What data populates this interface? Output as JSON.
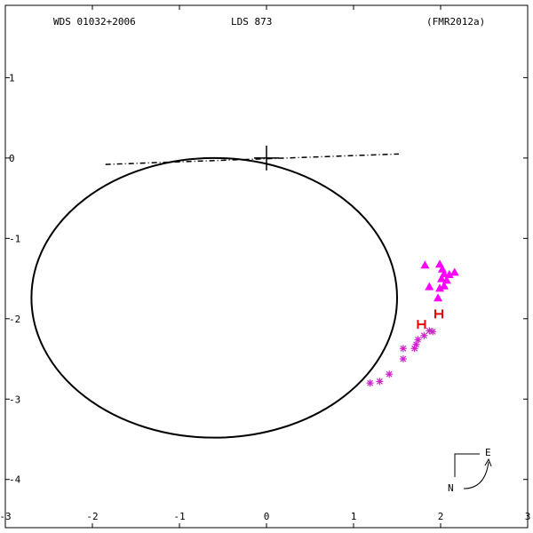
{
  "header": {
    "left": "WDS 01032+2006",
    "center": "LDS 873",
    "right": "(FMR2012a)"
  },
  "compass": {
    "east": "E",
    "north": "N"
  },
  "colors": {
    "orbit": "#000000",
    "triangles": "#ff00ff",
    "asterisks": "#cc22cc",
    "speckle": "#ee0000",
    "frame": "#000000"
  },
  "chart_data": {
    "type": "scatter",
    "title": "",
    "xlabel": "",
    "ylabel": "",
    "xlim": [
      -3.0,
      3.0
    ],
    "ylim": [
      -4.6,
      1.9
    ],
    "xticks": [
      -3,
      -2,
      -1,
      0,
      1,
      2,
      3
    ],
    "yticks": [
      1,
      0,
      -1,
      -2,
      -3,
      -4
    ],
    "grid": false,
    "orbit": {
      "center": [
        -0.6,
        -1.74
      ],
      "semi_axes": [
        2.1,
        1.74
      ],
      "line_of_nodes": [
        [
          -1.85,
          -0.08
        ],
        [
          1.52,
          0.05
        ]
      ],
      "primary": [
        0,
        0
      ]
    },
    "series": [
      {
        "marker": "triangle",
        "points": [
          [
            1.82,
            -1.33
          ],
          [
            1.99,
            -1.32
          ],
          [
            2.02,
            -1.38
          ],
          [
            2.04,
            -1.44
          ],
          [
            2.01,
            -1.5
          ],
          [
            2.1,
            -1.45
          ],
          [
            2.07,
            -1.52
          ],
          [
            2.16,
            -1.42
          ],
          [
            1.87,
            -1.6
          ],
          [
            1.99,
            -1.62
          ],
          [
            2.04,
            -1.59
          ],
          [
            1.97,
            -1.74
          ]
        ]
      },
      {
        "marker": "asterisk",
        "points": [
          [
            1.19,
            -2.8
          ],
          [
            1.3,
            -2.78
          ],
          [
            1.41,
            -2.69
          ],
          [
            1.57,
            -2.5
          ],
          [
            1.57,
            -2.37
          ],
          [
            1.7,
            -2.37
          ],
          [
            1.72,
            -2.32
          ],
          [
            1.74,
            -2.26
          ],
          [
            1.81,
            -2.21
          ],
          [
            1.87,
            -2.15
          ],
          [
            1.91,
            -2.16
          ]
        ]
      },
      {
        "marker": "H",
        "points": [
          [
            1.78,
            -2.07
          ],
          [
            1.98,
            -1.94
          ]
        ]
      }
    ]
  }
}
